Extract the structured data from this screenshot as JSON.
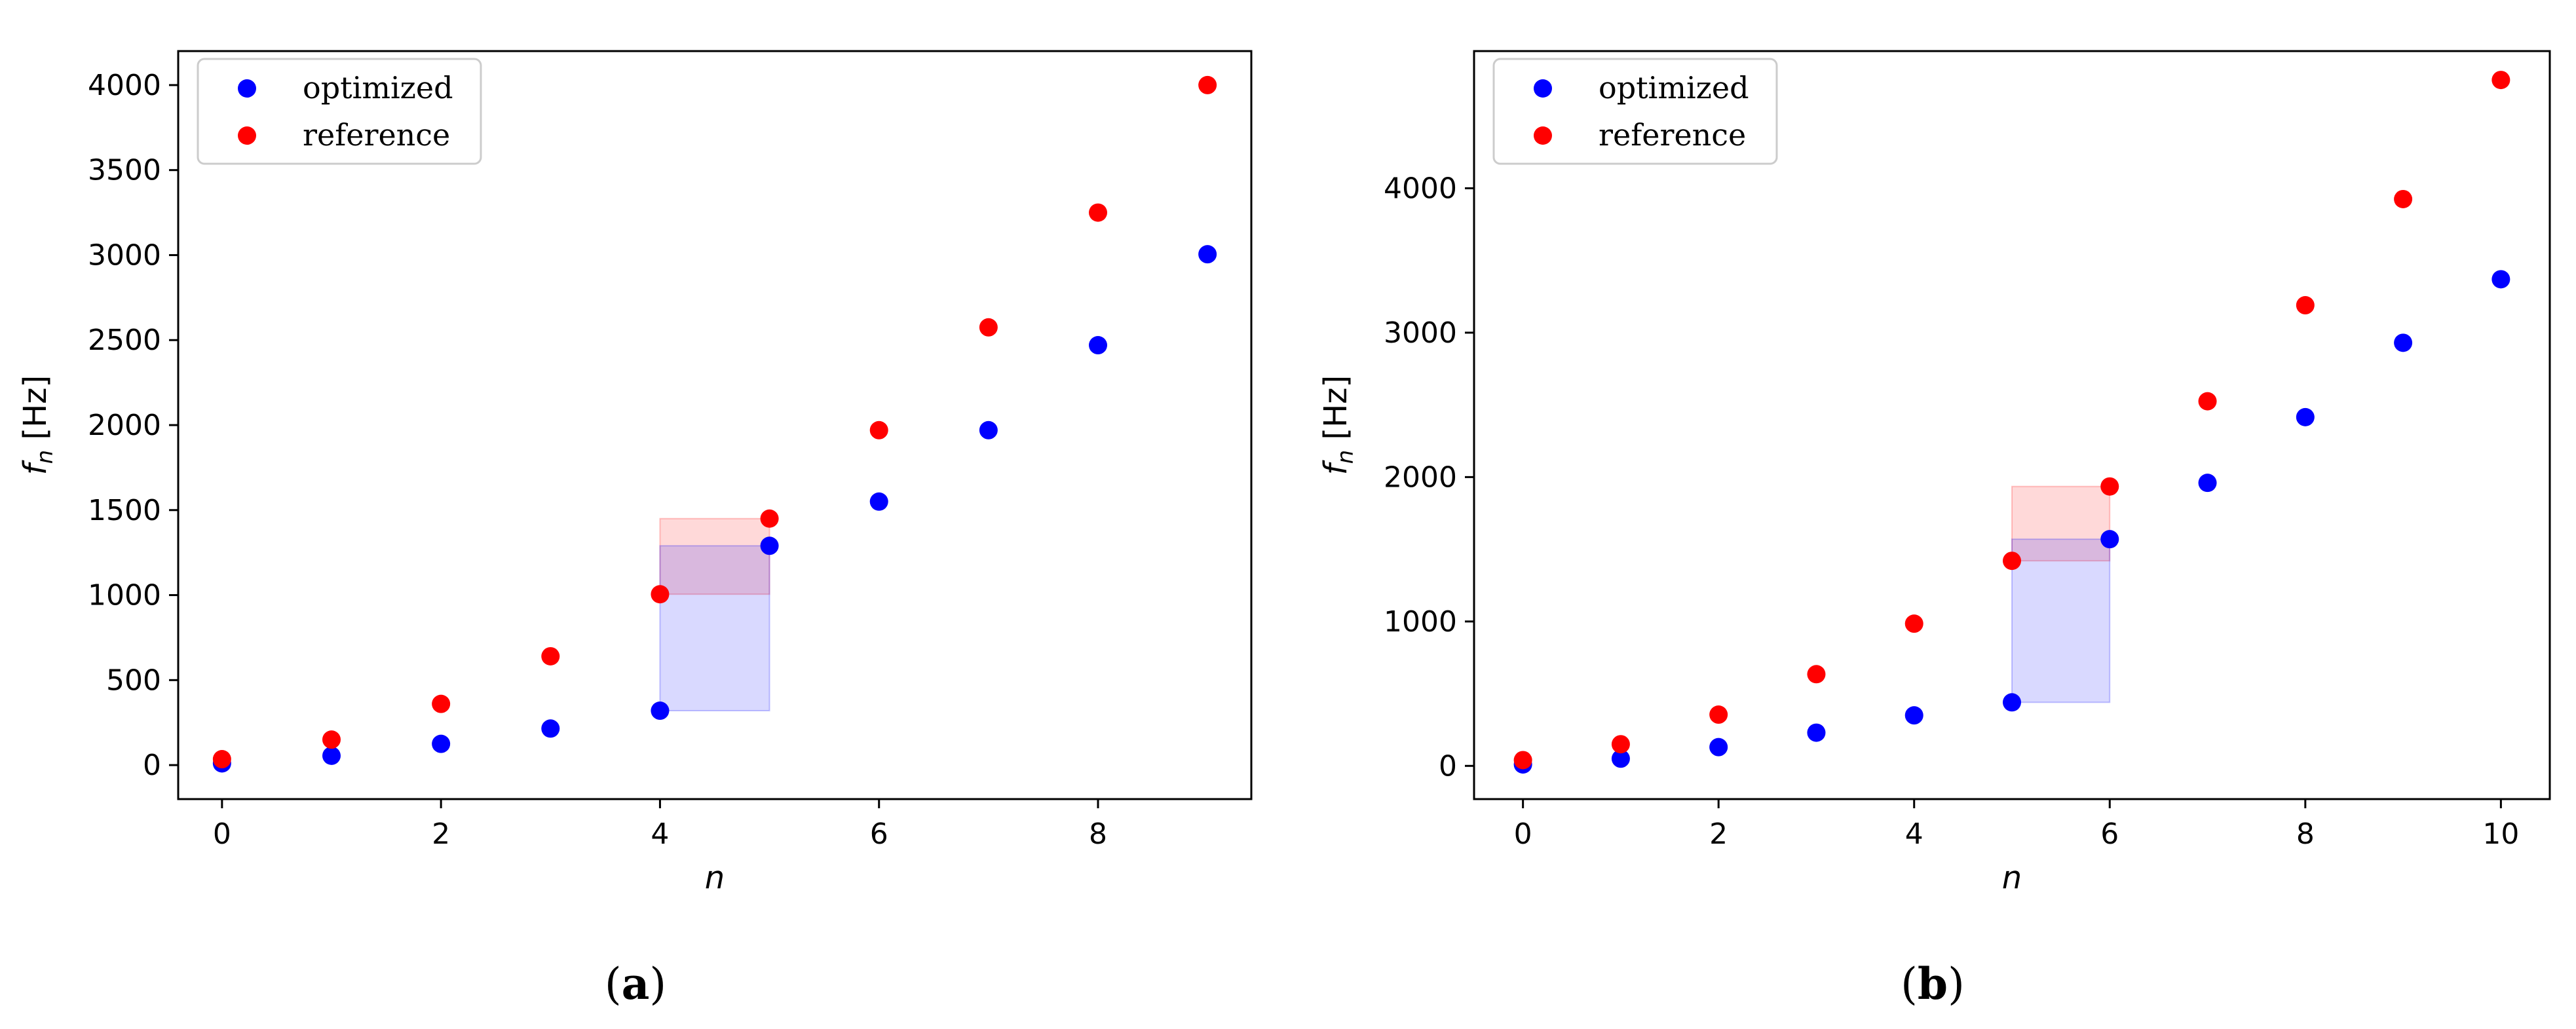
{
  "colors": {
    "optimized": "#0000ff",
    "reference": "#ff0000",
    "axis": "#000000",
    "background": "#ffffff",
    "legend_border": "#cccccc"
  },
  "chart_data": [
    {
      "type": "scatter",
      "panel": "a",
      "caption": "(a)",
      "caption_letter": "a",
      "xlabel": "n",
      "ylabel": "f_n [Hz]",
      "ylabel_main": "f",
      "ylabel_sub": "n",
      "ylabel_unit": " [Hz]",
      "xlim": [
        -0.4,
        9.4
      ],
      "ylim": [
        -200,
        4200
      ],
      "xticks": [
        0,
        2,
        4,
        6,
        8
      ],
      "yticks": [
        0,
        500,
        1000,
        1500,
        2000,
        2500,
        3000,
        3500,
        4000
      ],
      "grid": false,
      "legend": "top-left",
      "series": [
        {
          "name": "optimized",
          "color": "#0000ff",
          "x": [
            0,
            1,
            2,
            3,
            4,
            5,
            6,
            7,
            8,
            9
          ],
          "y": [
            10,
            55,
            125,
            215,
            320,
            1290,
            1550,
            1970,
            2470,
            3005
          ]
        },
        {
          "name": "reference",
          "color": "#ff0000",
          "x": [
            0,
            1,
            2,
            3,
            4,
            5,
            6,
            7,
            8,
            9
          ],
          "y": [
            35,
            150,
            360,
            640,
            1005,
            1450,
            1970,
            2575,
            3250,
            4000
          ]
        }
      ],
      "bands": [
        {
          "series": "reference",
          "color": "#ff0000",
          "x0": 4,
          "x1": 5,
          "y0": 1005,
          "y1": 1450
        },
        {
          "series": "optimized",
          "color": "#0000ff",
          "x0": 4,
          "x1": 5,
          "y0": 320,
          "y1": 1290
        }
      ]
    },
    {
      "type": "scatter",
      "panel": "b",
      "caption": "(b)",
      "caption_letter": "b",
      "xlabel": "n",
      "ylabel": "f_n [Hz]",
      "ylabel_main": "f",
      "ylabel_sub": "n",
      "ylabel_unit": " [Hz]",
      "xlim": [
        -0.5,
        10.5
      ],
      "ylim": [
        -230,
        4950
      ],
      "xticks": [
        0,
        2,
        4,
        6,
        8,
        10
      ],
      "yticks": [
        0,
        1000,
        2000,
        3000,
        4000
      ],
      "grid": false,
      "legend": "top-left",
      "series": [
        {
          "name": "optimized",
          "color": "#0000ff",
          "x": [
            0,
            1,
            2,
            3,
            4,
            5,
            6,
            7,
            8,
            9,
            10
          ],
          "y": [
            10,
            50,
            130,
            230,
            350,
            440,
            1570,
            1960,
            2415,
            2930,
            3370
          ]
        },
        {
          "name": "reference",
          "color": "#ff0000",
          "x": [
            0,
            1,
            2,
            3,
            4,
            5,
            6,
            7,
            8,
            9,
            10
          ],
          "y": [
            40,
            150,
            355,
            635,
            985,
            1420,
            1935,
            2525,
            3190,
            3925,
            4750
          ]
        }
      ],
      "bands": [
        {
          "series": "reference",
          "color": "#ff0000",
          "x0": 5,
          "x1": 6,
          "y0": 1420,
          "y1": 1935
        },
        {
          "series": "optimized",
          "color": "#0000ff",
          "x0": 5,
          "x1": 6,
          "y0": 440,
          "y1": 1570
        }
      ]
    }
  ]
}
